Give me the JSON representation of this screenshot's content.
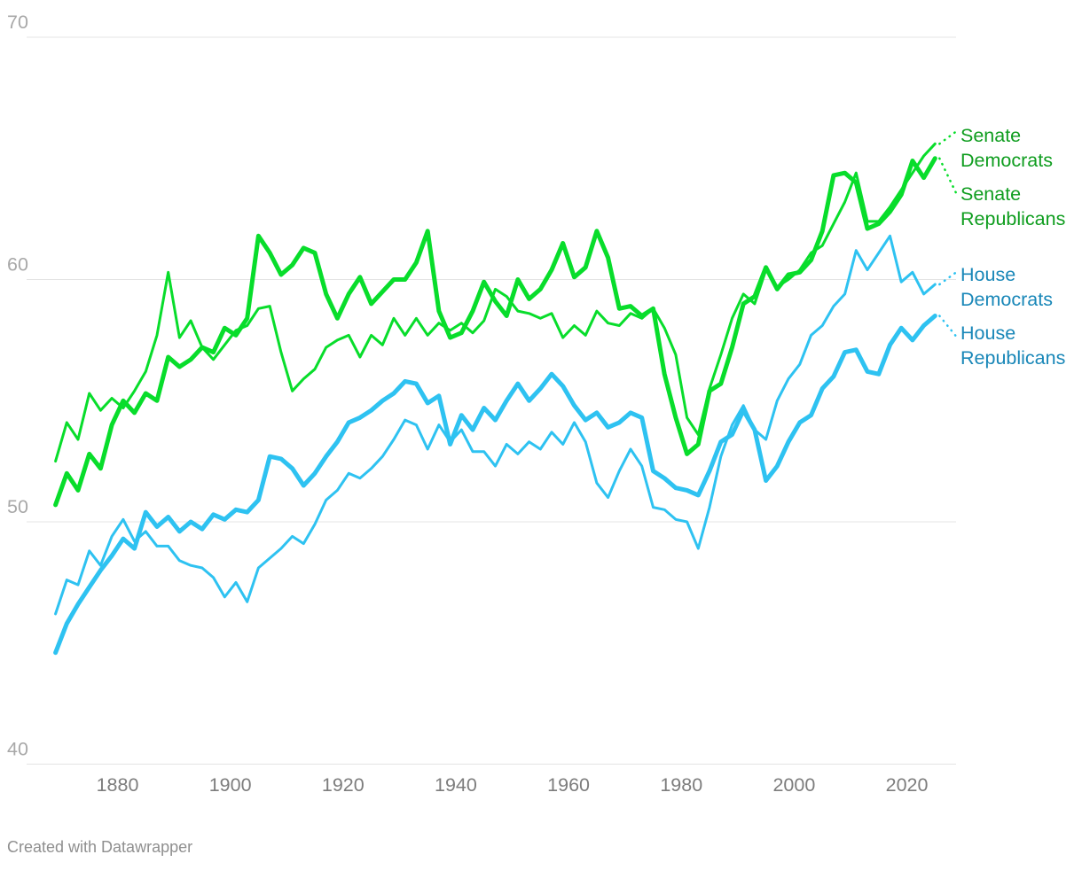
{
  "chart_data": {
    "type": "line",
    "title": "",
    "xlabel": "",
    "ylabel": "",
    "x_ticks": [
      "1880",
      "1900",
      "1920",
      "1940",
      "1960",
      "1980",
      "2000",
      "2020"
    ],
    "y_ticks": [
      "40",
      "50",
      "60",
      "70"
    ],
    "xlim": [
      1869,
      2029
    ],
    "ylim": [
      40,
      71
    ],
    "grid": "horizontal",
    "legend_position": "right-of-line-ends",
    "years": [
      1869,
      1871,
      1873,
      1875,
      1877,
      1879,
      1881,
      1883,
      1885,
      1887,
      1889,
      1891,
      1893,
      1895,
      1897,
      1899,
      1901,
      1903,
      1905,
      1907,
      1909,
      1911,
      1913,
      1915,
      1917,
      1919,
      1921,
      1923,
      1925,
      1927,
      1929,
      1931,
      1933,
      1935,
      1937,
      1939,
      1941,
      1943,
      1945,
      1947,
      1949,
      1951,
      1953,
      1955,
      1957,
      1959,
      1961,
      1963,
      1965,
      1967,
      1969,
      1971,
      1973,
      1975,
      1977,
      1979,
      1981,
      1983,
      1985,
      1987,
      1989,
      1991,
      1993,
      1995,
      1997,
      1999,
      2001,
      2003,
      2005,
      2007,
      2009,
      2011,
      2013,
      2015,
      2017,
      2019,
      2021,
      2023,
      2025
    ],
    "series": [
      {
        "name": "Senate Democrats",
        "label_lines": [
          "Senate",
          "Democrats"
        ],
        "color": "#08dd2b",
        "label_color": "#0f9d1f",
        "stroke_width": 3,
        "values": [
          52.5,
          54.1,
          53.4,
          55.3,
          54.6,
          55.1,
          54.7,
          55.4,
          56.2,
          57.7,
          60.3,
          57.6,
          58.3,
          57.2,
          56.7,
          57.3,
          57.9,
          58.1,
          58.8,
          58.9,
          57.0,
          55.4,
          55.9,
          56.3,
          57.2,
          57.5,
          57.7,
          56.8,
          57.7,
          57.3,
          58.4,
          57.7,
          58.4,
          57.7,
          58.2,
          57.9,
          58.2,
          57.8,
          58.3,
          59.6,
          59.3,
          58.7,
          58.6,
          58.4,
          58.6,
          57.6,
          58.1,
          57.7,
          58.7,
          58.2,
          58.1,
          58.6,
          58.4,
          58.8,
          58.0,
          56.9,
          54.3,
          53.6,
          55.5,
          56.9,
          58.4,
          59.4,
          59.0,
          60.4,
          59.7,
          60.0,
          60.4,
          61.1,
          61.4,
          62.3,
          63.2,
          64.4,
          62.4,
          62.4,
          63.0,
          63.7,
          64.4,
          65.1,
          65.6
        ]
      },
      {
        "name": "Senate Republicans",
        "label_lines": [
          "Senate",
          "Republicans"
        ],
        "color": "#08dd2b",
        "label_color": "#0f9d1f",
        "stroke_width": 5,
        "values": [
          50.7,
          52.0,
          51.3,
          52.8,
          52.2,
          54.0,
          55.0,
          54.5,
          55.3,
          55.0,
          56.8,
          56.4,
          56.7,
          57.2,
          57.0,
          58.0,
          57.7,
          58.4,
          61.8,
          61.1,
          60.2,
          60.6,
          61.3,
          61.1,
          59.4,
          58.4,
          59.4,
          60.1,
          59.0,
          59.5,
          60.0,
          60.0,
          60.7,
          62.0,
          58.7,
          57.6,
          57.8,
          58.7,
          59.9,
          59.1,
          58.5,
          60.0,
          59.2,
          59.6,
          60.4,
          61.5,
          60.1,
          60.5,
          62.0,
          60.9,
          58.8,
          58.9,
          58.5,
          58.8,
          56.1,
          54.3,
          52.8,
          53.2,
          55.4,
          55.7,
          57.2,
          59.0,
          59.3,
          60.5,
          59.6,
          60.2,
          60.3,
          60.8,
          62.0,
          64.3,
          64.4,
          64.0,
          62.1,
          62.3,
          62.8,
          63.5,
          64.9,
          64.2,
          65.0
        ]
      },
      {
        "name": "House Democrats",
        "label_lines": [
          "House",
          "Democrats"
        ],
        "color": "#2ec2f1",
        "label_color": "#1987b8",
        "stroke_width": 3,
        "values": [
          46.2,
          47.6,
          47.4,
          48.8,
          48.2,
          49.4,
          50.1,
          49.2,
          49.6,
          49.0,
          49.0,
          48.4,
          48.2,
          48.1,
          47.7,
          46.9,
          47.5,
          46.7,
          48.1,
          48.5,
          48.9,
          49.4,
          49.1,
          49.9,
          50.9,
          51.3,
          52.0,
          51.8,
          52.2,
          52.7,
          53.4,
          54.2,
          54.0,
          53.0,
          54.0,
          53.3,
          53.8,
          52.9,
          52.9,
          52.3,
          53.2,
          52.8,
          53.3,
          53.0,
          53.7,
          53.2,
          54.1,
          53.3,
          51.6,
          51.0,
          52.1,
          53.0,
          52.3,
          50.6,
          50.5,
          50.1,
          50.0,
          48.9,
          50.6,
          52.7,
          54.0,
          54.8,
          53.8,
          53.4,
          55.0,
          55.9,
          56.5,
          57.7,
          58.1,
          58.9,
          59.4,
          61.2,
          60.4,
          61.1,
          61.8,
          59.9,
          60.3,
          59.4,
          59.8
        ]
      },
      {
        "name": "House Republicans",
        "label_lines": [
          "House",
          "Republicans"
        ],
        "color": "#2ec2f1",
        "label_color": "#1987b8",
        "stroke_width": 5,
        "values": [
          44.6,
          45.8,
          46.6,
          47.3,
          48.0,
          48.6,
          49.3,
          48.9,
          50.4,
          49.8,
          50.2,
          49.6,
          50.0,
          49.7,
          50.3,
          50.1,
          50.5,
          50.4,
          50.9,
          52.7,
          52.6,
          52.2,
          51.5,
          52.0,
          52.7,
          53.3,
          54.1,
          54.3,
          54.6,
          55.0,
          55.3,
          55.8,
          55.7,
          54.9,
          55.2,
          53.2,
          54.4,
          53.8,
          54.7,
          54.2,
          55.0,
          55.7,
          55.0,
          55.5,
          56.1,
          55.6,
          54.8,
          54.2,
          54.5,
          53.9,
          54.1,
          54.5,
          54.3,
          52.1,
          51.8,
          51.4,
          51.3,
          51.1,
          52.1,
          53.3,
          53.6,
          54.6,
          53.8,
          51.7,
          52.3,
          53.3,
          54.1,
          54.4,
          55.5,
          56.0,
          57.0,
          57.1,
          56.2,
          56.1,
          57.3,
          58.0,
          57.5,
          58.1,
          58.5
        ]
      }
    ],
    "style": {
      "gridline_color": "#e4e4e4",
      "y_tick_color": "#a8a8a8",
      "x_tick_color": "#7d7d7d"
    }
  },
  "footer": {
    "credit": "Created with Datawrapper"
  }
}
